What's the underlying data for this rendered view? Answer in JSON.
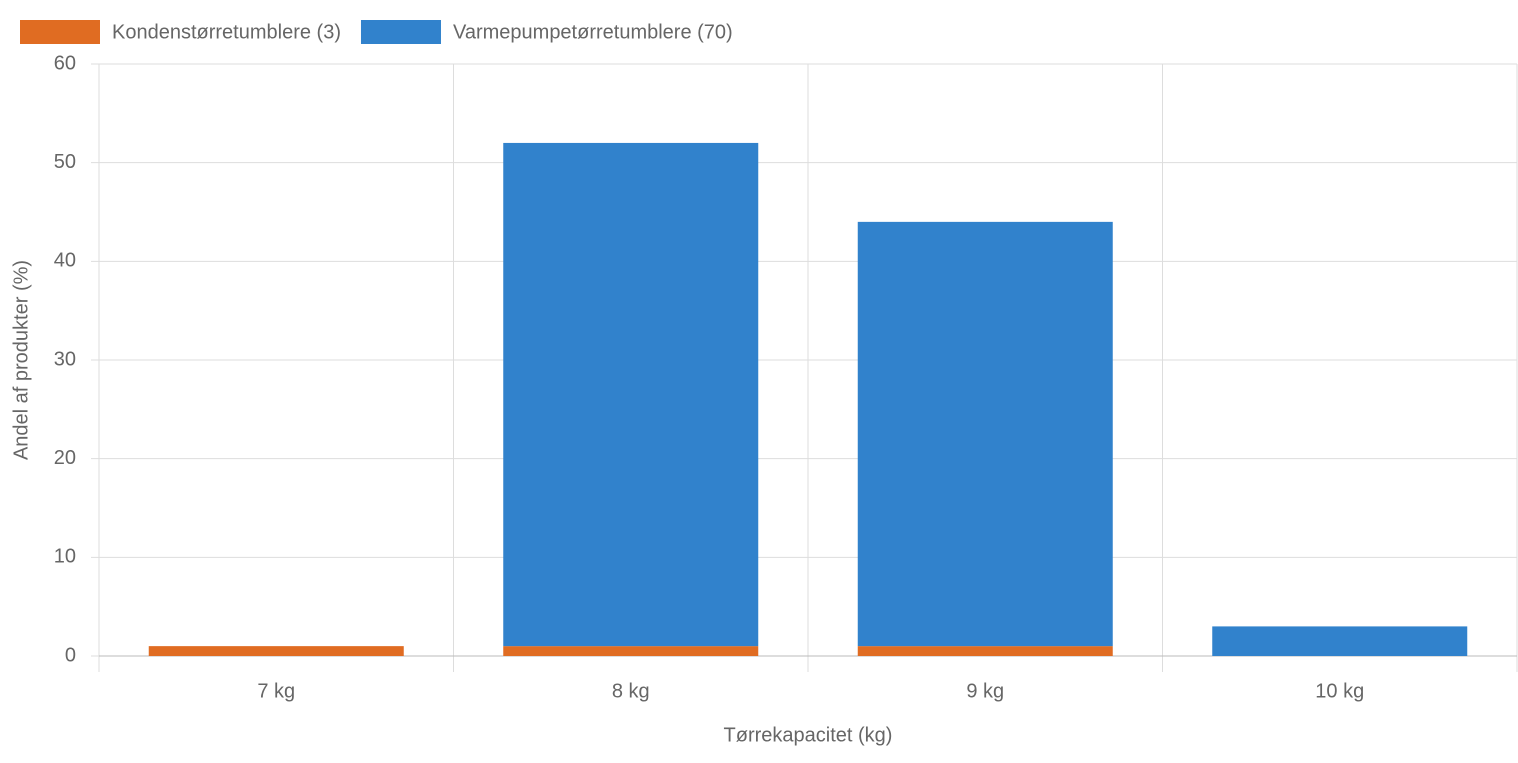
{
  "chart_data": {
    "type": "bar",
    "stacked": true,
    "x_label": "Tørrekapacitet (kg)",
    "y_label": "Andel af produkter (%)",
    "categories": [
      "7 kg",
      "8 kg",
      "9 kg",
      "10 kg"
    ],
    "series": [
      {
        "name": "Kondenstørretumblere (3)",
        "color": "#e06c22",
        "values": [
          1,
          1,
          1,
          0
        ]
      },
      {
        "name": "Varmepumpetørretumblere (70)",
        "color": "#3182cc",
        "values": [
          0,
          51,
          43,
          3
        ]
      }
    ],
    "ylim": [
      0,
      60
    ],
    "yticks": [
      0,
      10,
      20,
      30,
      40,
      50,
      60
    ],
    "grid": true,
    "legend": "top-left"
  }
}
